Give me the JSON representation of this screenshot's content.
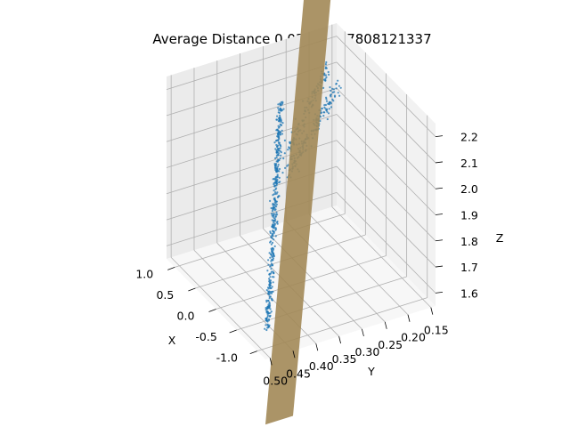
{
  "chart_data": {
    "type": "scatter",
    "projection": "3d",
    "title": "Average Distance 0.03741737808121337",
    "xlabel": "X",
    "ylabel": "Y",
    "zlabel": "Z",
    "xlim": [
      -1.2,
      1.2
    ],
    "ylim": [
      0.14,
      0.51
    ],
    "zlim": [
      1.55,
      2.25
    ],
    "x_ticks": [
      "-1.0",
      "-0.5",
      "0.0",
      "0.5",
      "1.0"
    ],
    "y_ticks": [
      "0.15",
      "0.20",
      "0.25",
      "0.30",
      "0.35",
      "0.40",
      "0.45",
      "0.50"
    ],
    "z_ticks": [
      "1.6",
      "1.7",
      "1.8",
      "1.9",
      "2.0",
      "2.1",
      "2.2"
    ],
    "grid": true,
    "colors": {
      "points": "#1f77b4",
      "plane": "#a28857",
      "pane_left": "#f2f2f2",
      "pane_back": "#ebebeb",
      "pane_floor": "#f7f7f7"
    },
    "series": [
      {
        "kind": "points",
        "groups": [
          {
            "segment": [
              [
                -0.8,
                0.47,
                1.58
              ],
              [
                0.1,
                0.36,
                2.25
              ]
            ],
            "count": 420,
            "spread": 0.012
          },
          {
            "segment": [
              [
                0.1,
                0.35,
                1.95
              ],
              [
                1.15,
                0.14,
                2.02
              ]
            ],
            "count": 160,
            "spread": 0.02
          },
          {
            "segment": [
              [
                0.0,
                0.36,
                2.05
              ],
              [
                0.95,
                0.18,
                2.15
              ]
            ],
            "count": 120,
            "spread": 0.02
          }
        ]
      },
      {
        "kind": "plane",
        "corners": [
          [
            -1.2,
            0.51,
            1.3
          ],
          [
            -1.2,
            0.45,
            1.3
          ],
          [
            1.2,
            0.14,
            2.6
          ],
          [
            1.2,
            0.2,
            2.6
          ]
        ]
      }
    ]
  }
}
